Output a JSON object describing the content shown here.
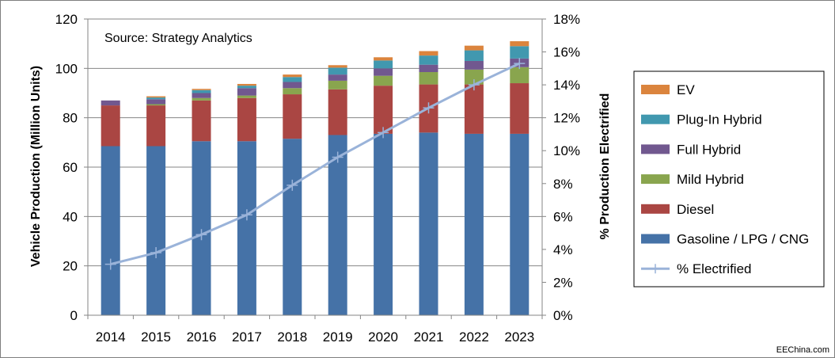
{
  "chart_data": {
    "type": "bar",
    "stacked": true,
    "categories": [
      "2014",
      "2015",
      "2016",
      "2017",
      "2018",
      "2019",
      "2020",
      "2021",
      "2022",
      "2023"
    ],
    "series": [
      {
        "name": "Gasoline / LPG / CNG",
        "color": "#4572A7",
        "values": [
          68.5,
          68.5,
          70.5,
          70.5,
          71.5,
          73,
          73.5,
          74,
          73.5,
          73.5
        ]
      },
      {
        "name": "Diesel",
        "color": "#AA4643",
        "values": [
          16.5,
          16.5,
          16.5,
          17.5,
          18,
          18.5,
          19.5,
          19.5,
          20,
          20.5
        ]
      },
      {
        "name": "Mild Hybrid",
        "color": "#89A54E",
        "values": [
          0,
          0.5,
          1,
          1,
          2.5,
          3.5,
          4,
          5,
          6,
          6.5
        ]
      },
      {
        "name": "Full Hybrid",
        "color": "#71588F",
        "values": [
          2,
          2,
          2,
          3,
          2.5,
          2.5,
          3,
          3,
          3.5,
          3.5
        ]
      },
      {
        "name": "Plug-In Hybrid",
        "color": "#4198AF",
        "values": [
          0,
          0.7,
          1.2,
          1,
          2,
          2.8,
          3.2,
          3.7,
          4.3,
          5
        ]
      },
      {
        "name": "EV",
        "color": "#DB843D",
        "values": [
          0,
          0.5,
          0.5,
          0.7,
          1,
          1,
          1.3,
          1.8,
          1.9,
          2
        ]
      }
    ],
    "line_series": {
      "name": "% Electrified",
      "color": "#9AB3D9",
      "values": [
        3.1,
        3.8,
        4.9,
        6.1,
        7.9,
        9.6,
        11.1,
        12.6,
        14,
        15.3
      ],
      "axis": "right"
    },
    "ylabel": "Vehicle Production (Million Units)",
    "y2label": "% Production Electrified",
    "ylim": [
      0,
      120
    ],
    "y2lim": [
      0,
      18
    ],
    "yticks": [
      "0",
      "20",
      "40",
      "60",
      "80",
      "100",
      "120"
    ],
    "y2ticks": [
      "0%",
      "2%",
      "4%",
      "6%",
      "8%",
      "10%",
      "12%",
      "14%",
      "16%",
      "18%"
    ],
    "annotation": "Source: Strategy Analytics",
    "legend_position": "right",
    "legend_order": [
      "EV",
      "Plug-In Hybrid",
      "Full Hybrid",
      "Mild Hybrid",
      "Diesel",
      "Gasoline / LPG / CNG",
      "% Electrified"
    ]
  },
  "watermark": "EEChina.com"
}
